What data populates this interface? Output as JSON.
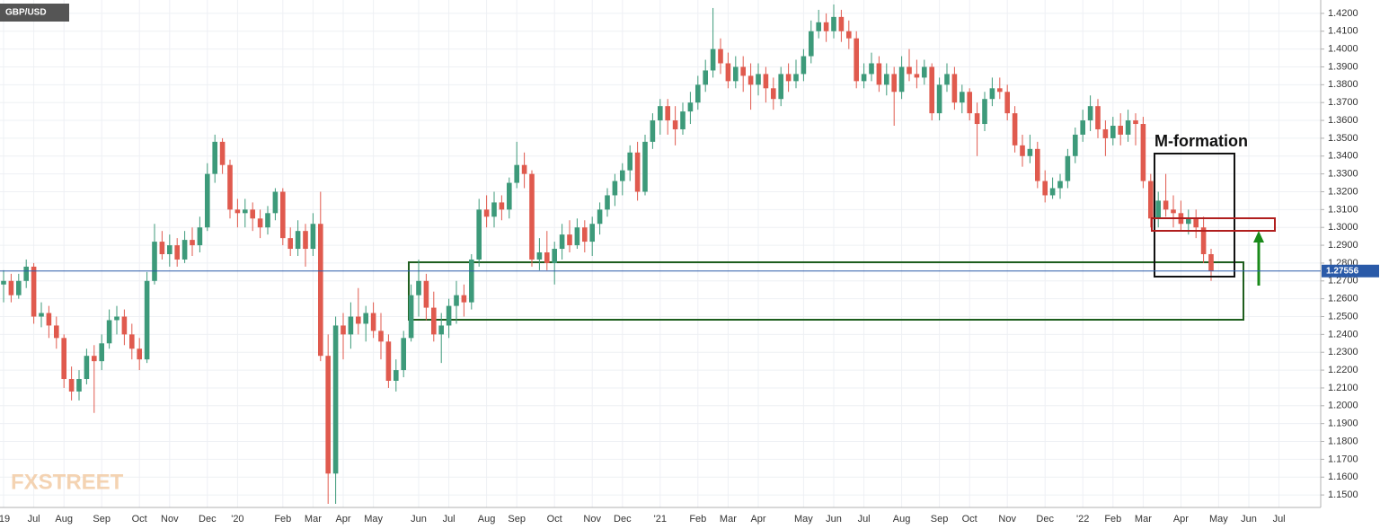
{
  "chart_data": {
    "type": "candlestick",
    "title": "GBP/USD",
    "annotation": "M-formation",
    "watermark": "FXSTREET",
    "up_color": "#3d9a7a",
    "down_color": "#e05a4e",
    "last_price_color": "#2a5aa8",
    "grid": true,
    "ylim": [
      1.143,
      1.4275
    ],
    "yticks": [
      {
        "value": 1.15,
        "label": "1.1500"
      },
      {
        "value": 1.16,
        "label": "1.1600"
      },
      {
        "value": 1.17,
        "label": "1.1700"
      },
      {
        "value": 1.18,
        "label": "1.1800"
      },
      {
        "value": 1.19,
        "label": "1.1900"
      },
      {
        "value": 1.2,
        "label": "1.2000"
      },
      {
        "value": 1.21,
        "label": "1.2100"
      },
      {
        "value": 1.22,
        "label": "1.2200"
      },
      {
        "value": 1.23,
        "label": "1.2300"
      },
      {
        "value": 1.24,
        "label": "1.2400"
      },
      {
        "value": 1.25,
        "label": "1.2500"
      },
      {
        "value": 1.26,
        "label": "1.2600"
      },
      {
        "value": 1.27,
        "label": "1.2700"
      },
      {
        "value": 1.28,
        "label": "1.2800"
      },
      {
        "value": 1.29,
        "label": "1.2900"
      },
      {
        "value": 1.3,
        "label": "1.3000"
      },
      {
        "value": 1.31,
        "label": "1.3100"
      },
      {
        "value": 1.32,
        "label": "1.3200"
      },
      {
        "value": 1.33,
        "label": "1.3300"
      },
      {
        "value": 1.34,
        "label": "1.3400"
      },
      {
        "value": 1.35,
        "label": "1.3500"
      },
      {
        "value": 1.36,
        "label": "1.3600"
      },
      {
        "value": 1.37,
        "label": "1.3700"
      },
      {
        "value": 1.38,
        "label": "1.3800"
      },
      {
        "value": 1.39,
        "label": "1.3900"
      },
      {
        "value": 1.4,
        "label": "1.4000"
      },
      {
        "value": 1.41,
        "label": "1.4100"
      },
      {
        "value": 1.42,
        "label": "1.4200"
      }
    ],
    "categories": [
      "'19",
      null,
      null,
      null,
      "Jul",
      null,
      null,
      null,
      "Aug",
      null,
      null,
      null,
      null,
      "Sep",
      null,
      null,
      null,
      null,
      "Oct",
      null,
      null,
      null,
      "Nov",
      null,
      null,
      null,
      null,
      "Dec",
      null,
      null,
      null,
      "'20",
      null,
      null,
      null,
      null,
      null,
      "Feb",
      null,
      null,
      null,
      "Mar",
      null,
      null,
      null,
      "Apr",
      null,
      null,
      null,
      "May",
      null,
      null,
      null,
      null,
      null,
      "Jun",
      null,
      null,
      null,
      "Jul",
      null,
      null,
      null,
      null,
      "Aug",
      null,
      null,
      null,
      "Sep",
      null,
      null,
      null,
      null,
      "Oct",
      null,
      null,
      null,
      null,
      "Nov",
      null,
      null,
      null,
      "Dec",
      null,
      null,
      null,
      null,
      "'21",
      null,
      null,
      null,
      null,
      "Feb",
      null,
      null,
      null,
      "Mar",
      null,
      null,
      null,
      "Apr",
      null,
      null,
      null,
      null,
      null,
      "May",
      null,
      null,
      null,
      "Jun",
      null,
      null,
      null,
      "Jul",
      null,
      null,
      null,
      null,
      "Aug",
      null,
      null,
      null,
      null,
      "Sep",
      null,
      null,
      null,
      "Oct",
      null,
      null,
      null,
      null,
      "Nov",
      null,
      null,
      null,
      null,
      "Dec",
      null,
      null,
      null,
      null,
      "'22",
      null,
      null,
      null,
      "Feb",
      null,
      null,
      null,
      "Mar",
      null,
      null,
      null,
      null,
      "Apr",
      null,
      null,
      null,
      null,
      "May",
      null,
      null,
      null,
      "Jun",
      null,
      null,
      null,
      "Jul",
      null
    ],
    "candles": [
      [
        1.268,
        1.276,
        1.258,
        1.27
      ],
      [
        1.27,
        1.274,
        1.258,
        1.262
      ],
      [
        1.262,
        1.274,
        1.26,
        1.27
      ],
      [
        1.27,
        1.282,
        1.266,
        1.278
      ],
      [
        1.278,
        1.28,
        1.246,
        1.25
      ],
      [
        1.25,
        1.258,
        1.244,
        1.252
      ],
      [
        1.252,
        1.256,
        1.238,
        1.245
      ],
      [
        1.245,
        1.25,
        1.232,
        1.238
      ],
      [
        1.238,
        1.24,
        1.21,
        1.215
      ],
      [
        1.215,
        1.222,
        1.203,
        1.208
      ],
      [
        1.208,
        1.22,
        1.203,
        1.215
      ],
      [
        1.215,
        1.232,
        1.212,
        1.228
      ],
      [
        1.228,
        1.234,
        1.196,
        1.225
      ],
      [
        1.225,
        1.24,
        1.22,
        1.235
      ],
      [
        1.235,
        1.254,
        1.232,
        1.248
      ],
      [
        1.248,
        1.256,
        1.24,
        1.25
      ],
      [
        1.25,
        1.254,
        1.234,
        1.24
      ],
      [
        1.24,
        1.246,
        1.226,
        1.232
      ],
      [
        1.232,
        1.238,
        1.22,
        1.226
      ],
      [
        1.226,
        1.275,
        1.224,
        1.27
      ],
      [
        1.27,
        1.302,
        1.268,
        1.292
      ],
      [
        1.292,
        1.298,
        1.282,
        1.285
      ],
      [
        1.285,
        1.296,
        1.278,
        1.29
      ],
      [
        1.29,
        1.294,
        1.278,
        1.282
      ],
      [
        1.282,
        1.298,
        1.28,
        1.293
      ],
      [
        1.293,
        1.3,
        1.284,
        1.29
      ],
      [
        1.29,
        1.306,
        1.286,
        1.3
      ],
      [
        1.3,
        1.336,
        1.298,
        1.33
      ],
      [
        1.33,
        1.352,
        1.325,
        1.348
      ],
      [
        1.348,
        1.35,
        1.33,
        1.335
      ],
      [
        1.335,
        1.338,
        1.305,
        1.31
      ],
      [
        1.31,
        1.316,
        1.3,
        1.308
      ],
      [
        1.308,
        1.316,
        1.3,
        1.31
      ],
      [
        1.31,
        1.314,
        1.298,
        1.305
      ],
      [
        1.305,
        1.31,
        1.294,
        1.3
      ],
      [
        1.3,
        1.312,
        1.296,
        1.308
      ],
      [
        1.308,
        1.322,
        1.304,
        1.32
      ],
      [
        1.32,
        1.322,
        1.29,
        1.294
      ],
      [
        1.294,
        1.3,
        1.284,
        1.288
      ],
      [
        1.288,
        1.304,
        1.284,
        1.298
      ],
      [
        1.298,
        1.302,
        1.278,
        1.288
      ],
      [
        1.288,
        1.308,
        1.284,
        1.302
      ],
      [
        1.302,
        1.32,
        1.225,
        1.228
      ],
      [
        1.228,
        1.24,
        1.145,
        1.162
      ],
      [
        1.162,
        1.25,
        1.145,
        1.245
      ],
      [
        1.245,
        1.252,
        1.226,
        1.24
      ],
      [
        1.24,
        1.258,
        1.232,
        1.25
      ],
      [
        1.25,
        1.266,
        1.24,
        1.246
      ],
      [
        1.246,
        1.256,
        1.236,
        1.252
      ],
      [
        1.252,
        1.258,
        1.238,
        1.242
      ],
      [
        1.242,
        1.252,
        1.226,
        1.236
      ],
      [
        1.236,
        1.24,
        1.21,
        1.214
      ],
      [
        1.214,
        1.226,
        1.208,
        1.22
      ],
      [
        1.22,
        1.242,
        1.216,
        1.238
      ],
      [
        1.238,
        1.268,
        1.236,
        1.262
      ],
      [
        1.262,
        1.282,
        1.25,
        1.27
      ],
      [
        1.27,
        1.274,
        1.248,
        1.255
      ],
      [
        1.255,
        1.264,
        1.236,
        1.24
      ],
      [
        1.24,
        1.252,
        1.224,
        1.245
      ],
      [
        1.245,
        1.26,
        1.238,
        1.256
      ],
      [
        1.256,
        1.27,
        1.246,
        1.262
      ],
      [
        1.262,
        1.268,
        1.25,
        1.258
      ],
      [
        1.258,
        1.285,
        1.254,
        1.282
      ],
      [
        1.282,
        1.316,
        1.278,
        1.31
      ],
      [
        1.31,
        1.318,
        1.3,
        1.306
      ],
      [
        1.306,
        1.32,
        1.3,
        1.314
      ],
      [
        1.314,
        1.318,
        1.304,
        1.31
      ],
      [
        1.31,
        1.328,
        1.305,
        1.325
      ],
      [
        1.325,
        1.348,
        1.322,
        1.335
      ],
      [
        1.335,
        1.342,
        1.322,
        1.33
      ],
      [
        1.33,
        1.332,
        1.278,
        1.282
      ],
      [
        1.282,
        1.294,
        1.276,
        1.286
      ],
      [
        1.286,
        1.298,
        1.276,
        1.28
      ],
      [
        1.28,
        1.292,
        1.268,
        1.288
      ],
      [
        1.288,
        1.302,
        1.282,
        1.296
      ],
      [
        1.296,
        1.304,
        1.286,
        1.29
      ],
      [
        1.29,
        1.305,
        1.288,
        1.3
      ],
      [
        1.3,
        1.304,
        1.286,
        1.292
      ],
      [
        1.292,
        1.306,
        1.284,
        1.302
      ],
      [
        1.302,
        1.314,
        1.296,
        1.31
      ],
      [
        1.31,
        1.322,
        1.306,
        1.318
      ],
      [
        1.318,
        1.33,
        1.312,
        1.326
      ],
      [
        1.326,
        1.336,
        1.318,
        1.332
      ],
      [
        1.332,
        1.346,
        1.326,
        1.342
      ],
      [
        1.342,
        1.348,
        1.315,
        1.32
      ],
      [
        1.32,
        1.352,
        1.318,
        1.348
      ],
      [
        1.348,
        1.364,
        1.344,
        1.36
      ],
      [
        1.36,
        1.372,
        1.352,
        1.368
      ],
      [
        1.368,
        1.372,
        1.352,
        1.36
      ],
      [
        1.36,
        1.368,
        1.346,
        1.355
      ],
      [
        1.355,
        1.37,
        1.352,
        1.365
      ],
      [
        1.365,
        1.376,
        1.358,
        1.37
      ],
      [
        1.37,
        1.385,
        1.366,
        1.38
      ],
      [
        1.38,
        1.394,
        1.376,
        1.388
      ],
      [
        1.388,
        1.423,
        1.384,
        1.4
      ],
      [
        1.4,
        1.406,
        1.386,
        1.392
      ],
      [
        1.392,
        1.398,
        1.378,
        1.382
      ],
      [
        1.382,
        1.396,
        1.378,
        1.39
      ],
      [
        1.39,
        1.396,
        1.376,
        1.385
      ],
      [
        1.385,
        1.392,
        1.366,
        1.38
      ],
      [
        1.38,
        1.392,
        1.374,
        1.386
      ],
      [
        1.386,
        1.39,
        1.37,
        1.378
      ],
      [
        1.378,
        1.384,
        1.366,
        1.372
      ],
      [
        1.372,
        1.39,
        1.368,
        1.386
      ],
      [
        1.386,
        1.392,
        1.376,
        1.382
      ],
      [
        1.382,
        1.394,
        1.378,
        1.386
      ],
      [
        1.386,
        1.4,
        1.382,
        1.396
      ],
      [
        1.396,
        1.416,
        1.392,
        1.41
      ],
      [
        1.41,
        1.422,
        1.406,
        1.415
      ],
      [
        1.415,
        1.42,
        1.404,
        1.41
      ],
      [
        1.41,
        1.425,
        1.406,
        1.418
      ],
      [
        1.418,
        1.422,
        1.404,
        1.41
      ],
      [
        1.41,
        1.416,
        1.4,
        1.406
      ],
      [
        1.406,
        1.41,
        1.378,
        1.382
      ],
      [
        1.382,
        1.392,
        1.378,
        1.386
      ],
      [
        1.386,
        1.398,
        1.382,
        1.392
      ],
      [
        1.392,
        1.396,
        1.376,
        1.38
      ],
      [
        1.38,
        1.392,
        1.374,
        1.386
      ],
      [
        1.386,
        1.39,
        1.357,
        1.376
      ],
      [
        1.376,
        1.396,
        1.372,
        1.39
      ],
      [
        1.39,
        1.4,
        1.382,
        1.386
      ],
      [
        1.386,
        1.394,
        1.378,
        1.384
      ],
      [
        1.384,
        1.394,
        1.38,
        1.39
      ],
      [
        1.39,
        1.392,
        1.36,
        1.364
      ],
      [
        1.364,
        1.384,
        1.36,
        1.38
      ],
      [
        1.38,
        1.392,
        1.376,
        1.386
      ],
      [
        1.386,
        1.39,
        1.366,
        1.37
      ],
      [
        1.37,
        1.38,
        1.364,
        1.376
      ],
      [
        1.376,
        1.378,
        1.36,
        1.364
      ],
      [
        1.364,
        1.37,
        1.34,
        1.358
      ],
      [
        1.358,
        1.376,
        1.354,
        1.372
      ],
      [
        1.372,
        1.384,
        1.368,
        1.378
      ],
      [
        1.378,
        1.384,
        1.372,
        1.376
      ],
      [
        1.376,
        1.38,
        1.36,
        1.364
      ],
      [
        1.364,
        1.368,
        1.342,
        1.346
      ],
      [
        1.346,
        1.352,
        1.334,
        1.34
      ],
      [
        1.34,
        1.352,
        1.336,
        1.344
      ],
      [
        1.344,
        1.348,
        1.322,
        1.326
      ],
      [
        1.326,
        1.332,
        1.314,
        1.318
      ],
      [
        1.318,
        1.328,
        1.316,
        1.322
      ],
      [
        1.322,
        1.33,
        1.316,
        1.326
      ],
      [
        1.326,
        1.344,
        1.322,
        1.34
      ],
      [
        1.34,
        1.356,
        1.336,
        1.352
      ],
      [
        1.352,
        1.366,
        1.348,
        1.36
      ],
      [
        1.36,
        1.374,
        1.354,
        1.368
      ],
      [
        1.368,
        1.372,
        1.35,
        1.355
      ],
      [
        1.355,
        1.36,
        1.34,
        1.35
      ],
      [
        1.35,
        1.362,
        1.346,
        1.357
      ],
      [
        1.357,
        1.364,
        1.346,
        1.352
      ],
      [
        1.352,
        1.366,
        1.348,
        1.36
      ],
      [
        1.36,
        1.364,
        1.346,
        1.358
      ],
      [
        1.358,
        1.362,
        1.322,
        1.326
      ],
      [
        1.326,
        1.33,
        1.3,
        1.305
      ],
      [
        1.305,
        1.32,
        1.3,
        1.315
      ],
      [
        1.315,
        1.33,
        1.306,
        1.31
      ],
      [
        1.31,
        1.318,
        1.3,
        1.308
      ],
      [
        1.308,
        1.315,
        1.298,
        1.302
      ],
      [
        1.302,
        1.31,
        1.296,
        1.305
      ],
      [
        1.305,
        1.31,
        1.294,
        1.3
      ],
      [
        1.3,
        1.306,
        1.28,
        1.285
      ],
      [
        1.285,
        1.288,
        1.27,
        1.27556
      ],
      null,
      null,
      null,
      null,
      null,
      null,
      null,
      null,
      null,
      null
    ]
  }
}
